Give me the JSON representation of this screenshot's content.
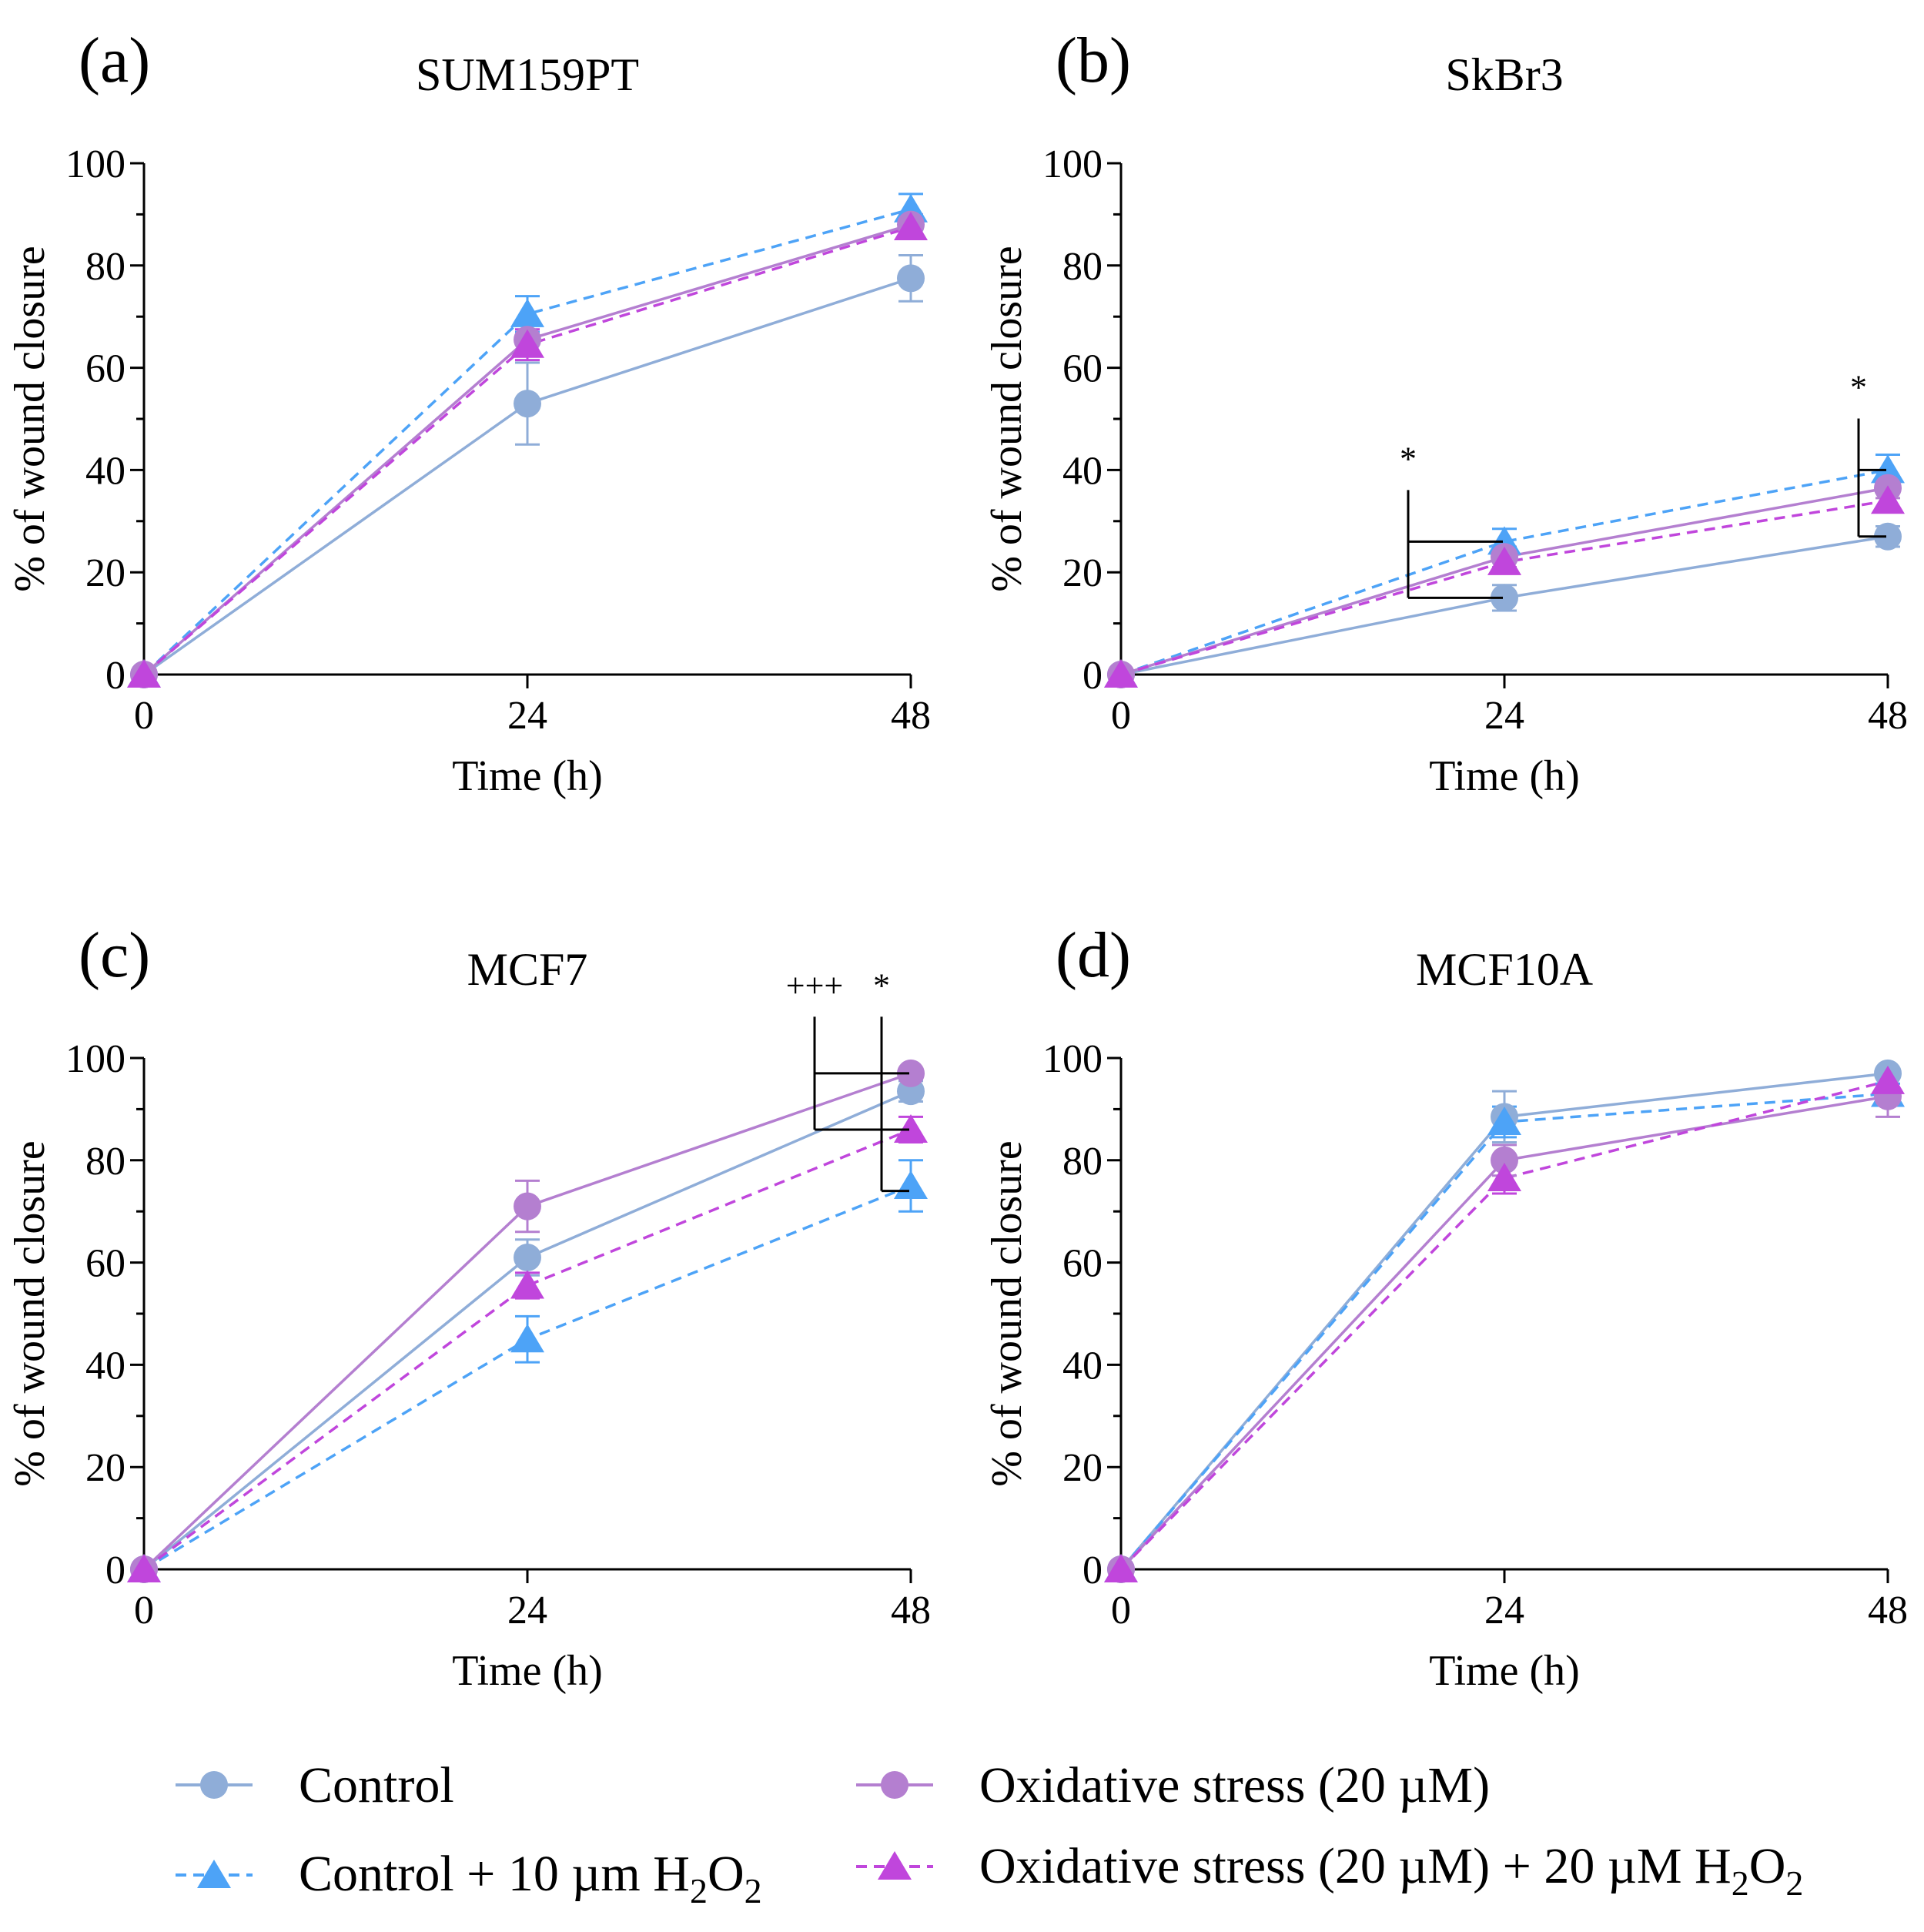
{
  "figure": {
    "legend": [
      {
        "key": "control",
        "label": "Control"
      },
      {
        "key": "control_h2o2",
        "label": "Control + 10 µm H2O2"
      },
      {
        "key": "ox",
        "label": "Oxidative stress (20 µM)"
      },
      {
        "key": "ox_h2o2",
        "label": "Oxidative stress (20 µM) + 20 µM H2O2"
      }
    ],
    "legend_display": {
      "control": {
        "main": "Control",
        "sub1": "",
        "mid": "",
        "sub2": ""
      },
      "control_h2o2": {
        "main": "Control + 10 µm H",
        "sub1": "2",
        "mid": "O",
        "sub2": "2"
      },
      "ox": {
        "main": "Oxidative stress (20 µM)",
        "sub1": "",
        "mid": "",
        "sub2": ""
      },
      "ox_h2o2": {
        "main": "Oxidative stress (20 µM) + 20 µM H",
        "sub1": "2",
        "mid": "O",
        "sub2": "2"
      }
    },
    "series_styles": {
      "control": {
        "color": "#8fadd8",
        "dash": "solid",
        "marker": "circle"
      },
      "control_h2o2": {
        "color": "#4da3f7",
        "dash": "dashed",
        "marker": "triangle"
      },
      "ox": {
        "color": "#b47fd0",
        "dash": "solid",
        "marker": "circle"
      },
      "ox_h2o2": {
        "color": "#c046dc",
        "dash": "dashed",
        "marker": "triangle"
      }
    }
  },
  "chart_data": [
    {
      "type": "line",
      "panel": "(a)",
      "title": "SUM159PT",
      "xlabel": "Time (h)",
      "ylabel": "% of wound closure",
      "x": [
        0,
        24,
        48
      ],
      "xticks": [
        0,
        24,
        48
      ],
      "yticks": [
        0,
        20,
        40,
        60,
        80,
        100
      ],
      "ylim": [
        0,
        100
      ],
      "series": [
        {
          "key": "control",
          "name": "Control",
          "values": [
            0,
            53,
            77.5
          ],
          "errors": [
            0,
            8,
            4.5
          ]
        },
        {
          "key": "control_h2o2",
          "name": "Control + 10 µm H2O2",
          "values": [
            0,
            70.5,
            91
          ],
          "errors": [
            0,
            3.5,
            3
          ]
        },
        {
          "key": "ox",
          "name": "Oxidative stress (20 µM)",
          "values": [
            0,
            65.5,
            88
          ],
          "errors": [
            0,
            3,
            2
          ]
        },
        {
          "key": "ox_h2o2",
          "name": "Oxidative stress (20 µM) + 20 µM H2O2",
          "values": [
            0,
            64.5,
            87.5
          ],
          "errors": [
            0,
            3,
            2
          ]
        }
      ],
      "annotations": []
    },
    {
      "type": "line",
      "panel": "(b)",
      "title": "SkBr3",
      "xlabel": "Time (h)",
      "ylabel": "% of wound closure",
      "x": [
        0,
        24,
        48
      ],
      "xticks": [
        0,
        24,
        48
      ],
      "yticks": [
        0,
        20,
        40,
        60,
        80,
        100
      ],
      "ylim": [
        0,
        100
      ],
      "series": [
        {
          "key": "control",
          "name": "Control",
          "values": [
            0,
            15,
            27
          ],
          "errors": [
            0,
            2.5,
            2
          ]
        },
        {
          "key": "control_h2o2",
          "name": "Control + 10 µm H2O2",
          "values": [
            0,
            26,
            40
          ],
          "errors": [
            0,
            2.5,
            3
          ]
        },
        {
          "key": "ox",
          "name": "Oxidative stress (20 µM)",
          "values": [
            0,
            23,
            36.5
          ],
          "errors": [
            0,
            2,
            2
          ]
        },
        {
          "key": "ox_h2o2",
          "name": "Oxidative stress (20 µM) + 20 µM H2O2",
          "values": [
            0,
            22,
            34
          ],
          "errors": [
            0,
            1.5,
            2
          ]
        }
      ],
      "annotations": [
        {
          "label": "*",
          "x": 24,
          "y_top": 26,
          "y_bottom": 15,
          "y_label": 40
        },
        {
          "label": "*",
          "x": 48,
          "y_top": 40,
          "y_bottom": 27,
          "y_label": 54
        }
      ]
    },
    {
      "type": "line",
      "panel": "(c)",
      "title": "MCF7",
      "xlabel": "Time (h)",
      "ylabel": "% of wound closure",
      "x": [
        0,
        24,
        48
      ],
      "xticks": [
        0,
        24,
        48
      ],
      "yticks": [
        0,
        20,
        40,
        60,
        80,
        100
      ],
      "ylim": [
        0,
        100
      ],
      "series": [
        {
          "key": "control",
          "name": "Control",
          "values": [
            0,
            61,
            93.5
          ],
          "errors": [
            0,
            3.5,
            2
          ]
        },
        {
          "key": "control_h2o2",
          "name": "Control + 10 µm H2O2",
          "values": [
            0,
            45,
            75
          ],
          "errors": [
            0,
            4.5,
            5
          ]
        },
        {
          "key": "ox",
          "name": "Oxidative stress (20 µM)",
          "values": [
            0,
            71,
            97
          ],
          "errors": [
            0,
            5,
            1
          ]
        },
        {
          "key": "ox_h2o2",
          "name": "Oxidative stress (20 µM) + 20 µM H2O2",
          "values": [
            0,
            55.5,
            86
          ],
          "errors": [
            0,
            2.5,
            2.5
          ]
        }
      ],
      "annotations": [
        {
          "label": "+++",
          "x": 48,
          "y_top": 97,
          "y_bottom": 86,
          "y_label": 112
        },
        {
          "label": "*",
          "x": 48,
          "y_top": 86,
          "y_bottom": 74,
          "y_label": 112
        }
      ]
    },
    {
      "type": "line",
      "panel": "(d)",
      "title": "MCF10A",
      "xlabel": "Time (h)",
      "ylabel": "% of wound closure",
      "x": [
        0,
        24,
        48
      ],
      "xticks": [
        0,
        24,
        48
      ],
      "yticks": [
        0,
        20,
        40,
        60,
        80,
        100
      ],
      "ylim": [
        0,
        100
      ],
      "series": [
        {
          "key": "control",
          "name": "Control",
          "values": [
            0,
            88.5,
            97
          ],
          "errors": [
            0,
            5,
            1
          ]
        },
        {
          "key": "control_h2o2",
          "name": "Control + 10 µm H2O2",
          "values": [
            0,
            87.5,
            93
          ],
          "errors": [
            0,
            3,
            2
          ]
        },
        {
          "key": "ox",
          "name": "Oxidative stress (20 µM)",
          "values": [
            0,
            80,
            92.5
          ],
          "errors": [
            0,
            3,
            4
          ]
        },
        {
          "key": "ox_h2o2",
          "name": "Oxidative stress (20 µM) + 20 µM H2O2",
          "values": [
            0,
            76.5,
            95.5
          ],
          "errors": [
            0,
            3,
            2
          ]
        }
      ],
      "annotations": []
    }
  ]
}
